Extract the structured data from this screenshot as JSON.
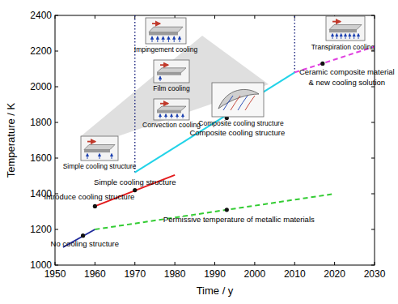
{
  "chart_data": {
    "type": "line",
    "x_label": "Time / y",
    "y_label": "Temperature / K",
    "xlim": [
      1950,
      2030
    ],
    "xticks": [
      1950,
      1960,
      1970,
      1980,
      1990,
      2000,
      2010,
      2020,
      2030
    ],
    "ylim": [
      1000,
      2400
    ],
    "yticks": [
      1000,
      1200,
      1400,
      1600,
      1800,
      2000,
      2200,
      2400
    ],
    "grid": false,
    "series": [
      {
        "color": "#1f2a9c",
        "line_style": "solid",
        "x": [
          1952,
          1960
        ],
        "values": [
          1100,
          1200
        ]
      },
      {
        "color": "#e31a1c",
        "line_style": "solid",
        "x": [
          1960,
          1980
        ],
        "values": [
          1330,
          1505
        ]
      },
      {
        "color": "#33cc33",
        "line_style": "dashed",
        "x": [
          1960,
          2020
        ],
        "values": [
          1200,
          1400
        ]
      },
      {
        "color": "#22d3e8",
        "line_style": "solid",
        "x": [
          1970,
          2010
        ],
        "values": [
          1520,
          2080
        ]
      },
      {
        "color": "#e040e0",
        "line_style": "dashed",
        "x": [
          2010,
          2030
        ],
        "values": [
          2080,
          2225
        ]
      }
    ],
    "reference_lines": [
      {
        "x": 1970,
        "y": [
          1520,
          2400
        ],
        "color": "#1a237e",
        "line_style": "dotted"
      },
      {
        "x": 2010,
        "y": [
          2080,
          2400
        ],
        "color": "#1a237e",
        "line_style": "dotted"
      }
    ],
    "annotations": [
      {
        "text": [
          "No cooling structure"
        ],
        "x": 1957,
        "y": 1165
      },
      {
        "text": [
          "Introduce cooling structure"
        ],
        "x": 1960,
        "y": 1330
      },
      {
        "text": [
          "Simple cooling structure"
        ],
        "x": 1970,
        "y": 1420
      },
      {
        "text": [
          "Permissive temperature of metallic materials"
        ],
        "x": 1993,
        "y": 1310
      },
      {
        "text": [
          "Composite cooling structure"
        ],
        "x": 1993,
        "y": 1825
      },
      {
        "text": [
          "Ceramic composite material",
          "& new cooling solution"
        ],
        "x": 2017,
        "y": 2130
      }
    ],
    "diagram_labels": [
      "Simple cooling structure",
      "Convection cooling",
      "Film cooling",
      "Impingement cooling",
      "Composite cooling structure",
      "Transpiration cooling"
    ]
  }
}
